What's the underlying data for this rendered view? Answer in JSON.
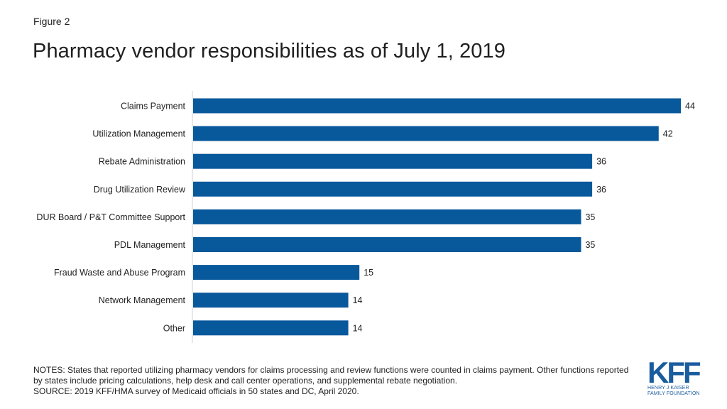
{
  "figure_label": "Figure 2",
  "title": "Pharmacy vendor responsibilities as of July 1, 2019",
  "chart_data": {
    "type": "bar",
    "orientation": "horizontal",
    "categories": [
      "Claims Payment",
      "Utilization Management",
      "Rebate Administration",
      "Drug Utilization Review",
      "DUR Board / P&T Committee Support",
      "PDL Management",
      "Fraud Waste and Abuse Program",
      "Network Management",
      "Other"
    ],
    "values": [
      44,
      42,
      36,
      36,
      35,
      35,
      15,
      14,
      14
    ],
    "xlim": [
      0,
      44
    ],
    "bar_color": "#08589c",
    "data_labels": true,
    "grid": false,
    "legend": "none"
  },
  "notes": {
    "line1": "NOTES: States that reported utilizing pharmacy vendors for claims processing and review functions were counted in claims payment. Other functions reported by states include pricing calculations,  help desk and call center operations, and supplemental rebate negotiation.",
    "source": "SOURCE: 2019 KFF/HMA survey  of Medicaid officials in 50 states and DC, April 2020."
  },
  "logo": {
    "mark": "KFF",
    "line1": "HENRY J KAISER",
    "line2": "FAMILY FOUNDATION",
    "color": "#1a5c9e"
  }
}
